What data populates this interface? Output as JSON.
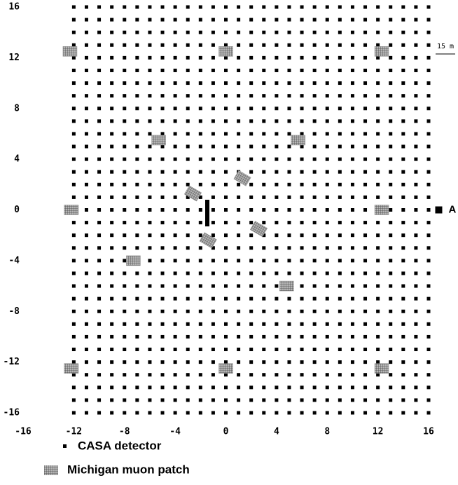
{
  "chart_data": {
    "type": "scatter",
    "xlim": [
      -16,
      16
    ],
    "ylim": [
      -16,
      16
    ],
    "xticks": [
      -16,
      -12,
      -8,
      -4,
      0,
      4,
      8,
      12,
      16
    ],
    "yticks": [
      -16,
      -12,
      -8,
      -4,
      0,
      4,
      8,
      12,
      16
    ],
    "series": [
      {
        "name": "CASA detector",
        "color": "#000000",
        "grid_x": [
          -12,
          -11,
          -10,
          -9,
          -8,
          -7,
          -6,
          -5,
          -4,
          -3,
          -2,
          -1,
          0,
          1,
          2,
          3,
          4,
          5,
          6,
          7,
          8,
          9,
          10,
          11,
          12,
          13,
          14,
          15,
          16
        ],
        "grid_y": [
          16,
          15,
          14,
          13,
          12,
          11,
          10,
          9,
          8,
          7,
          6,
          5,
          4,
          3,
          2,
          1,
          0,
          -1,
          -2,
          -3,
          -4,
          -5,
          -6,
          -7,
          -8,
          -9,
          -10,
          -11,
          -12,
          -13,
          -14,
          -15,
          -16
        ]
      },
      {
        "name": "Michigan muon patch",
        "color": "#8a8a8a",
        "x": [
          -12.3,
          0,
          12.3,
          -5.3,
          5.7,
          1.3,
          -2.6,
          -12.2,
          12.3,
          2.6,
          -1.4,
          -7.3,
          4.8,
          -12.2,
          0,
          12.3
        ],
        "y": [
          12.5,
          12.5,
          12.5,
          5.5,
          5.5,
          2.5,
          1.3,
          0,
          0,
          -1.5,
          -2.4,
          -4,
          -6,
          -12.5,
          -12.5,
          -12.5
        ],
        "rotation": [
          0,
          0,
          0,
          0,
          0,
          30,
          30,
          0,
          0,
          30,
          30,
          0,
          0,
          0,
          0,
          0
        ]
      }
    ],
    "marker": {
      "label": "A",
      "x": 16.8,
      "y": 0
    },
    "scale_label": "15 m"
  }
}
